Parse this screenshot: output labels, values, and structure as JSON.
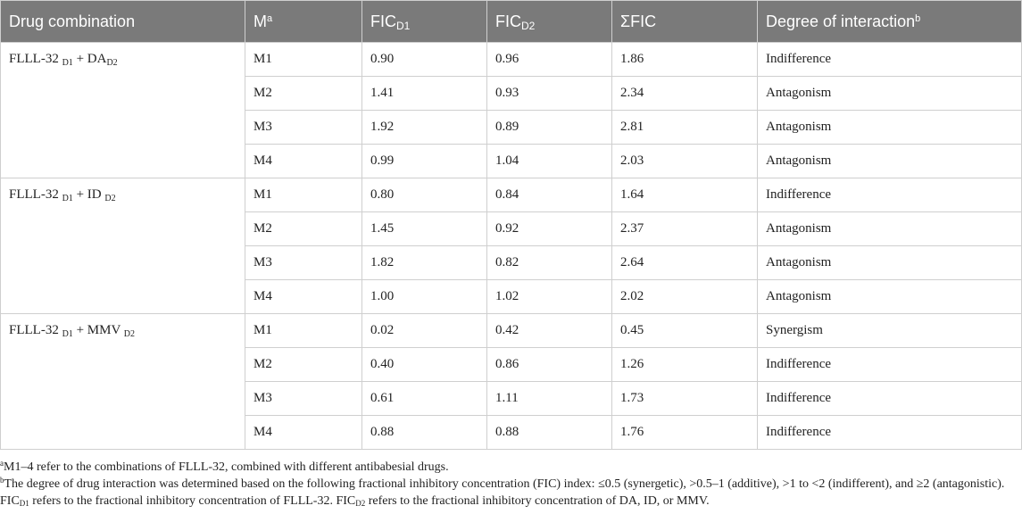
{
  "table": {
    "headers": {
      "combination": "Drug combination",
      "m_main": "M",
      "m_sup": "a",
      "fic_d1_main": "FIC",
      "fic_d1_sub": "D1",
      "fic_d2_main": "FIC",
      "fic_d2_sub": "D2",
      "sum_fic": "ΣFIC",
      "degree_main": "Degree of interaction",
      "degree_sup": "b"
    },
    "groups": [
      {
        "combo": {
          "a": "FLLL-32 ",
          "a_sub": "D1",
          "plus": " + DA",
          "b_sub": "D2"
        },
        "rows": [
          {
            "m": "M1",
            "fic_d1": "0.90",
            "fic_d2": "0.96",
            "sum": "1.86",
            "degree": "Indifference"
          },
          {
            "m": "M2",
            "fic_d1": "1.41",
            "fic_d2": "0.93",
            "sum": "2.34",
            "degree": "Antagonism"
          },
          {
            "m": "M3",
            "fic_d1": "1.92",
            "fic_d2": "0.89",
            "sum": "2.81",
            "degree": "Antagonism"
          },
          {
            "m": "M4",
            "fic_d1": "0.99",
            "fic_d2": "1.04",
            "sum": "2.03",
            "degree": "Antagonism"
          }
        ]
      },
      {
        "combo": {
          "a": "FLLL-32 ",
          "a_sub": "D1",
          "plus": " + ID ",
          "b_sub": "D2"
        },
        "rows": [
          {
            "m": "M1",
            "fic_d1": "0.80",
            "fic_d2": "0.84",
            "sum": "1.64",
            "degree": "Indifference"
          },
          {
            "m": "M2",
            "fic_d1": "1.45",
            "fic_d2": "0.92",
            "sum": "2.37",
            "degree": "Antagonism"
          },
          {
            "m": "M3",
            "fic_d1": "1.82",
            "fic_d2": "0.82",
            "sum": "2.64",
            "degree": "Antagonism"
          },
          {
            "m": "M4",
            "fic_d1": "1.00",
            "fic_d2": "1.02",
            "sum": "2.02",
            "degree": "Antagonism"
          }
        ]
      },
      {
        "combo": {
          "a": "FLLL-32 ",
          "a_sub": "D1",
          "plus": " + MMV ",
          "b_sub": "D2"
        },
        "rows": [
          {
            "m": "M1",
            "fic_d1": "0.02",
            "fic_d2": "0.42",
            "sum": "0.45",
            "degree": "Synergism"
          },
          {
            "m": "M2",
            "fic_d1": "0.40",
            "fic_d2": "0.86",
            "sum": "1.26",
            "degree": "Indifference"
          },
          {
            "m": "M3",
            "fic_d1": "0.61",
            "fic_d2": "1.11",
            "sum": "1.73",
            "degree": "Indifference"
          },
          {
            "m": "M4",
            "fic_d1": "0.88",
            "fic_d2": "0.88",
            "sum": "1.76",
            "degree": "Indifference"
          }
        ]
      }
    ]
  },
  "footnotes": {
    "a_mark": "a",
    "a_text": "M1–4 refer to the combinations of FLLL-32, combined with different antibabesial drugs.",
    "b_mark": "b",
    "b_text_1": "The degree of drug interaction was determined based on the following fractional inhibitory concentration (FIC) index: ≤0.5 (synergetic), >0.5–1 (additive), >1 to <2 (indifferent), and ≥2 (antagonistic). FIC",
    "b_sub_1": "D1",
    "b_text_2": " refers to the fractional inhibitory concentration of FLLL-32. FIC",
    "b_sub_2": "D2",
    "b_text_3": " refers to the fractional inhibitory concentration of DA, ID, or MMV."
  }
}
